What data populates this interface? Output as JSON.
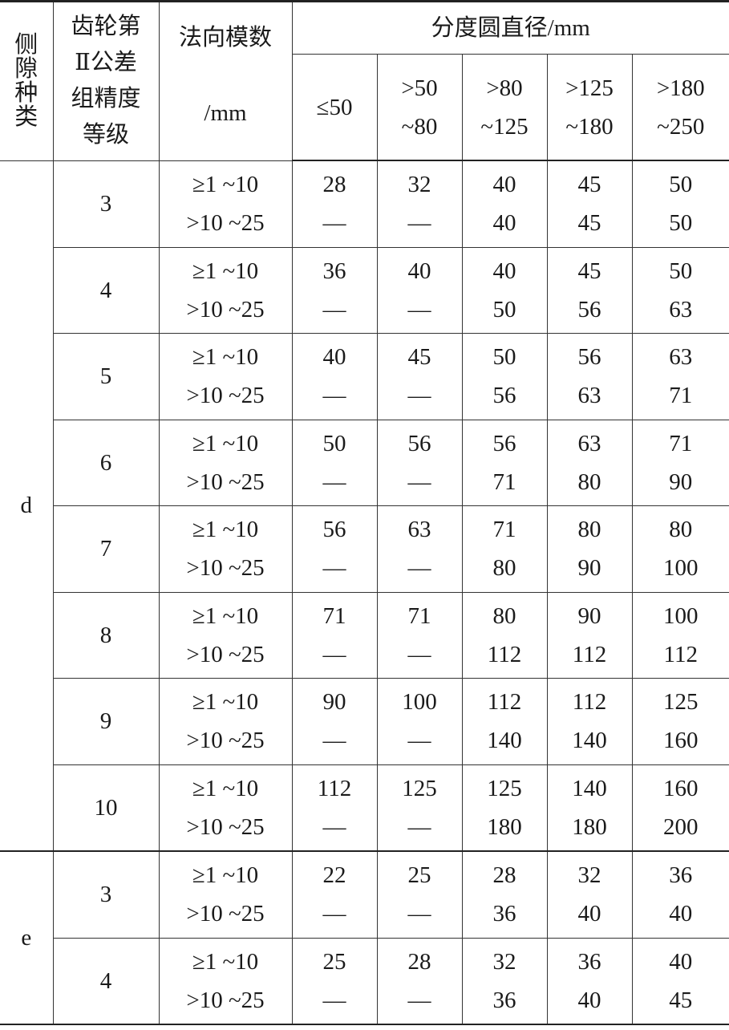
{
  "header": {
    "clearance_type": [
      "侧",
      "隙",
      "种",
      "类"
    ],
    "grade": [
      "齿轮第",
      "Ⅱ公差",
      "组精度",
      "等级"
    ],
    "module": [
      "法向模数",
      "/mm"
    ],
    "diameter_title": "分度圆直径/mm",
    "diameter_ranges": [
      [
        "≤50"
      ],
      [
        ">50",
        "~80"
      ],
      [
        ">80",
        "~125"
      ],
      [
        ">125",
        "~180"
      ],
      [
        ">180",
        "~250"
      ]
    ]
  },
  "module_ranges": [
    "≥1 ~10",
    ">10 ~25"
  ],
  "groups": [
    {
      "type": "d",
      "rows": [
        {
          "grade": "3",
          "v1": [
            "28",
            "32",
            "40",
            "45",
            "50"
          ],
          "v2": [
            "—",
            "—",
            "40",
            "45",
            "50"
          ]
        },
        {
          "grade": "4",
          "v1": [
            "36",
            "40",
            "40",
            "45",
            "50"
          ],
          "v2": [
            "—",
            "—",
            "50",
            "56",
            "63"
          ]
        },
        {
          "grade": "5",
          "v1": [
            "40",
            "45",
            "50",
            "56",
            "63"
          ],
          "v2": [
            "—",
            "—",
            "56",
            "63",
            "71"
          ]
        },
        {
          "grade": "6",
          "v1": [
            "50",
            "56",
            "56",
            "63",
            "71"
          ],
          "v2": [
            "—",
            "—",
            "71",
            "80",
            "90"
          ]
        },
        {
          "grade": "7",
          "v1": [
            "56",
            "63",
            "71",
            "80",
            "80"
          ],
          "v2": [
            "—",
            "—",
            "80",
            "90",
            "100"
          ]
        },
        {
          "grade": "8",
          "v1": [
            "71",
            "71",
            "80",
            "90",
            "100"
          ],
          "v2": [
            "—",
            "—",
            "112",
            "112",
            "112"
          ]
        },
        {
          "grade": "9",
          "v1": [
            "90",
            "100",
            "112",
            "112",
            "125"
          ],
          "v2": [
            "—",
            "—",
            "140",
            "140",
            "160"
          ]
        },
        {
          "grade": "10",
          "v1": [
            "112",
            "125",
            "125",
            "140",
            "160"
          ],
          "v2": [
            "—",
            "—",
            "180",
            "180",
            "200"
          ]
        }
      ]
    },
    {
      "type": "e",
      "rows": [
        {
          "grade": "3",
          "v1": [
            "22",
            "25",
            "28",
            "32",
            "36"
          ],
          "v2": [
            "—",
            "—",
            "36",
            "40",
            "40"
          ]
        },
        {
          "grade": "4",
          "v1": [
            "25",
            "28",
            "32",
            "36",
            "40"
          ],
          "v2": [
            "—",
            "—",
            "36",
            "40",
            "45"
          ]
        }
      ]
    }
  ]
}
